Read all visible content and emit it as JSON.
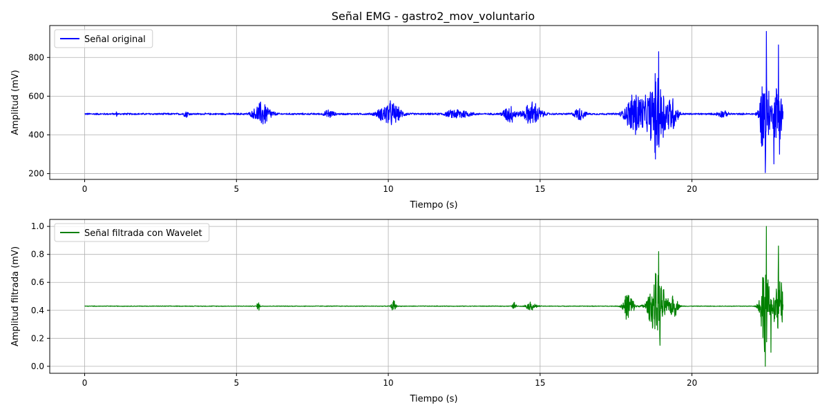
{
  "chart_data": [
    {
      "type": "line",
      "title": "Señal EMG - gastro2_mov_voluntario",
      "xlabel": "Tiempo (s)",
      "ylabel": "Amplitud (mV)",
      "xlim": [
        -1.15,
        24.15
      ],
      "ylim": [
        170,
        965
      ],
      "xticks": [
        0,
        5,
        10,
        15,
        20
      ],
      "yticks": [
        200,
        400,
        600,
        800
      ],
      "grid": true,
      "legend": "top-left",
      "color": "#0000ff",
      "duration": 23.0,
      "baseline": 508,
      "noise": 4,
      "series": [
        {
          "name": "Señal original"
        }
      ],
      "bursts": [
        {
          "center": 1.05,
          "width": 0.04,
          "amp": 8
        },
        {
          "center": 3.35,
          "width": 0.12,
          "amp": 14
        },
        {
          "center": 5.85,
          "width": 0.4,
          "amp": 55
        },
        {
          "center": 8.05,
          "width": 0.22,
          "amp": 18
        },
        {
          "center": 10.05,
          "width": 0.5,
          "amp": 55
        },
        {
          "center": 12.3,
          "width": 0.55,
          "amp": 22
        },
        {
          "center": 14.0,
          "width": 0.3,
          "amp": 40
        },
        {
          "center": 14.75,
          "width": 0.4,
          "amp": 55
        },
        {
          "center": 16.3,
          "width": 0.25,
          "amp": 28
        },
        {
          "center": 18.15,
          "width": 0.45,
          "amp": 110
        },
        {
          "center": 18.85,
          "width": 0.45,
          "amp": 180
        },
        {
          "center": 19.35,
          "width": 0.25,
          "amp": 70
        },
        {
          "center": 21.0,
          "width": 0.25,
          "amp": 14
        },
        {
          "center": 22.4,
          "width": 0.22,
          "amp": 220
        },
        {
          "center": 22.85,
          "width": 0.25,
          "amp": 170
        }
      ],
      "peaks": [
        {
          "x": 22.45,
          "y": 935
        },
        {
          "x": 22.42,
          "y": 205
        },
        {
          "x": 18.9,
          "y": 830
        },
        {
          "x": 18.8,
          "y": 275
        },
        {
          "x": 22.85,
          "y": 865
        },
        {
          "x": 22.7,
          "y": 250
        }
      ]
    },
    {
      "type": "line",
      "title": "",
      "xlabel": "Tiempo (s)",
      "ylabel": "Amplitud filtrada (mV)",
      "xlim": [
        -1.15,
        24.15
      ],
      "ylim": [
        -0.05,
        1.05
      ],
      "xticks": [
        0,
        5,
        10,
        15,
        20
      ],
      "yticks": [
        0.0,
        0.2,
        0.4,
        0.6,
        0.8,
        1.0
      ],
      "ytick_labels": [
        "0.0",
        "0.2",
        "0.4",
        "0.6",
        "0.8",
        "1.0"
      ],
      "grid": true,
      "legend": "top-left",
      "color": "#008000",
      "duration": 23.0,
      "baseline": 0.43,
      "noise": 0.002,
      "series": [
        {
          "name": "Señal filtrada con Wavelet"
        }
      ],
      "bursts": [
        {
          "center": 5.72,
          "width": 0.07,
          "amp": 0.03
        },
        {
          "center": 10.18,
          "width": 0.1,
          "amp": 0.04
        },
        {
          "center": 14.15,
          "width": 0.08,
          "amp": 0.03
        },
        {
          "center": 14.7,
          "width": 0.25,
          "amp": 0.025
        },
        {
          "center": 17.9,
          "width": 0.25,
          "amp": 0.09
        },
        {
          "center": 18.85,
          "width": 0.4,
          "amp": 0.2
        },
        {
          "center": 19.4,
          "width": 0.2,
          "amp": 0.07
        },
        {
          "center": 22.4,
          "width": 0.22,
          "amp": 0.28
        },
        {
          "center": 22.85,
          "width": 0.22,
          "amp": 0.22
        }
      ],
      "peaks": [
        {
          "x": 22.45,
          "y": 1.0
        },
        {
          "x": 22.42,
          "y": 0.0
        },
        {
          "x": 18.9,
          "y": 0.82
        },
        {
          "x": 18.95,
          "y": 0.15
        },
        {
          "x": 22.85,
          "y": 0.86
        },
        {
          "x": 22.6,
          "y": 0.1
        }
      ]
    }
  ]
}
